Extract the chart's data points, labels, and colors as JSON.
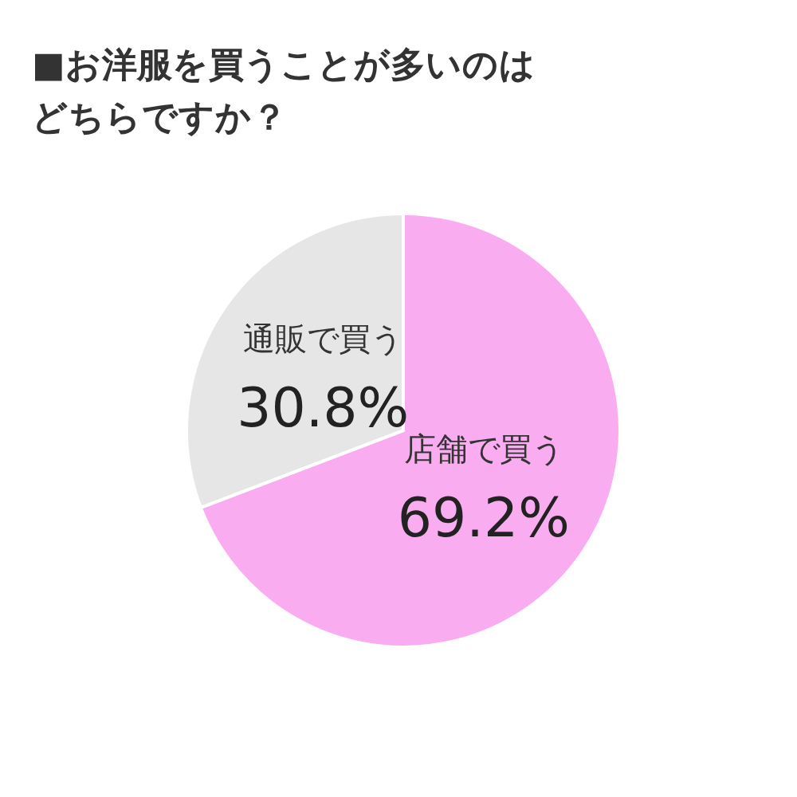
{
  "chart_data": {
    "type": "pie",
    "title": "■お洋服を買うことが多いのはどちらですか？",
    "categories": [
      "店舗で買う",
      "通販で買う"
    ],
    "values": [
      69.2,
      30.8
    ],
    "colors": [
      "#f9acf0",
      "#e6e6e6"
    ],
    "value_labels": [
      "69.2%",
      "30.8%"
    ],
    "legend": false
  }
}
